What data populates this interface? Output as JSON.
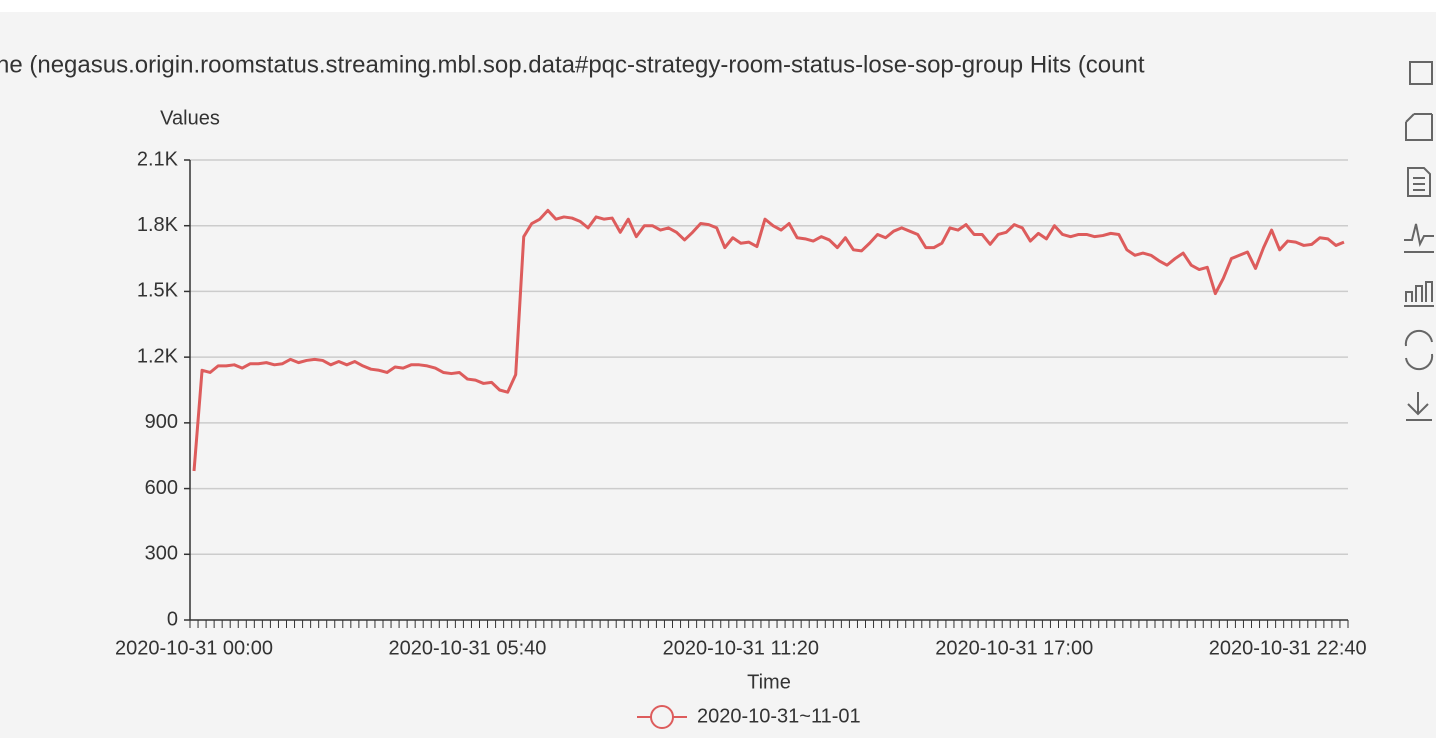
{
  "chart_data": {
    "type": "line",
    "title": "ne (negasus.origin.roomstatus.streaming.mbl.sop.data#pqc-strategy-room-status-lose-sop-group Hits (count",
    "y_axis_label": "Values",
    "x_axis_label": "Time",
    "categories": [
      "2020-10-31 00:00",
      null,
      null,
      null,
      null,
      null,
      null,
      null,
      null,
      null,
      null,
      null,
      null,
      null,
      null,
      null,
      null,
      null,
      null,
      null,
      null,
      null,
      null,
      null,
      null,
      null,
      null,
      null,
      null,
      null,
      null,
      null,
      null,
      null,
      "2020-10-31 05:40",
      null,
      null,
      null,
      null,
      null,
      null,
      null,
      null,
      null,
      null,
      null,
      null,
      null,
      null,
      null,
      null,
      null,
      null,
      null,
      null,
      null,
      null,
      null,
      null,
      null,
      null,
      null,
      null,
      null,
      null,
      null,
      null,
      null,
      "2020-10-31 11:20",
      null,
      null,
      null,
      null,
      null,
      null,
      null,
      null,
      null,
      null,
      null,
      null,
      null,
      null,
      null,
      null,
      null,
      null,
      null,
      null,
      null,
      null,
      null,
      null,
      null,
      null,
      null,
      null,
      null,
      null,
      null,
      null,
      null,
      "2020-10-31 17:00",
      null,
      null,
      null,
      null,
      null,
      null,
      null,
      null,
      null,
      null,
      null,
      null,
      null,
      null,
      null,
      null,
      null,
      null,
      null,
      null,
      null,
      null,
      null,
      null,
      null,
      null,
      null,
      null,
      null,
      null,
      null,
      null,
      null,
      "2020-10-31 22:40",
      null,
      null,
      null,
      null,
      null,
      null,
      null
    ],
    "series": [
      {
        "name": "2020-10-31~11-01",
        "color": "#dd5c5c",
        "values": [
          680,
          1140,
          1130,
          1160,
          1160,
          1165,
          1150,
          1170,
          1170,
          1175,
          1165,
          1170,
          1190,
          1175,
          1185,
          1190,
          1185,
          1165,
          1180,
          1165,
          1180,
          1160,
          1145,
          1140,
          1130,
          1155,
          1150,
          1165,
          1165,
          1160,
          1150,
          1130,
          1125,
          1130,
          1100,
          1095,
          1080,
          1085,
          1050,
          1040,
          1120,
          1750,
          1810,
          1830,
          1870,
          1830,
          1840,
          1835,
          1820,
          1790,
          1840,
          1830,
          1835,
          1770,
          1830,
          1750,
          1800,
          1800,
          1780,
          1790,
          1770,
          1735,
          1770,
          1810,
          1805,
          1790,
          1700,
          1745,
          1720,
          1725,
          1705,
          1830,
          1800,
          1780,
          1810,
          1745,
          1740,
          1730,
          1750,
          1735,
          1700,
          1745,
          1690,
          1685,
          1720,
          1760,
          1745,
          1775,
          1790,
          1775,
          1760,
          1700,
          1700,
          1720,
          1790,
          1780,
          1805,
          1760,
          1760,
          1715,
          1760,
          1770,
          1805,
          1790,
          1730,
          1765,
          1740,
          1800,
          1760,
          1750,
          1760,
          1760,
          1750,
          1755,
          1765,
          1760,
          1690,
          1665,
          1675,
          1665,
          1640,
          1620,
          1650,
          1675,
          1620,
          1600,
          1610,
          1490,
          1560,
          1650,
          1665,
          1680,
          1605,
          1700,
          1780,
          1690,
          1730,
          1725,
          1710,
          1715,
          1745,
          1740,
          1710,
          1725
        ]
      }
    ],
    "ylim": [
      0,
      2100
    ],
    "yticks": [
      0,
      300,
      600,
      900,
      {
        "value": 1200,
        "label": "1.2K"
      },
      {
        "value": 1500,
        "label": "1.5K"
      },
      {
        "value": 1800,
        "label": "1.8K"
      },
      {
        "value": 2100,
        "label": "2.1K"
      }
    ],
    "grid": true
  }
}
